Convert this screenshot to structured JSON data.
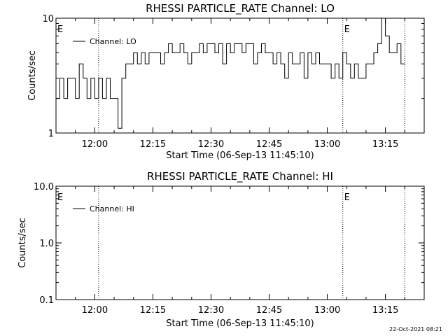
{
  "footer": {
    "timestamp": "22-Oct-2021 08:21"
  },
  "chart_data": [
    {
      "type": "line",
      "title": "RHESSI PARTICLE_RATE Channel: LO",
      "xlabel": "Start Time (06-Sep-13 11:45:10)",
      "ylabel": "Counts/sec",
      "yscale": "log",
      "ylim": [
        1,
        10
      ],
      "xlim": [
        "11:50",
        "13:25"
      ],
      "x_ticks": [
        "12:00",
        "12:15",
        "12:30",
        "12:45",
        "13:00",
        "13:15"
      ],
      "y_ticks": [
        "1",
        "10"
      ],
      "legend": {
        "label": "Channel: LO",
        "position": "top-left"
      },
      "markers": [
        {
          "label": "E",
          "time": "11:50"
        },
        {
          "label": "",
          "time": "12:01"
        },
        {
          "label": "E",
          "time": "13:04"
        },
        {
          "label": "",
          "time": "13:20"
        }
      ],
      "series": [
        {
          "name": "Channel: LO",
          "x": [
            "11:50",
            "11:51",
            "11:52",
            "11:53",
            "11:54",
            "11:55",
            "11:56",
            "11:57",
            "11:58",
            "11:59",
            "12:00",
            "12:01",
            "12:02",
            "12:03",
            "12:04",
            "12:05",
            "12:06",
            "12:07",
            "12:08",
            "12:09",
            "12:10",
            "12:11",
            "12:12",
            "12:13",
            "12:14",
            "12:15",
            "12:16",
            "12:17",
            "12:18",
            "12:19",
            "12:20",
            "12:21",
            "12:22",
            "12:23",
            "12:24",
            "12:25",
            "12:26",
            "12:27",
            "12:28",
            "12:29",
            "12:30",
            "12:31",
            "12:32",
            "12:33",
            "12:34",
            "12:35",
            "12:36",
            "12:37",
            "12:38",
            "12:39",
            "12:40",
            "12:41",
            "12:42",
            "12:43",
            "12:44",
            "12:45",
            "12:46",
            "12:47",
            "12:48",
            "12:49",
            "12:50",
            "12:51",
            "12:52",
            "12:53",
            "12:54",
            "12:55",
            "12:56",
            "12:57",
            "12:58",
            "12:59",
            "13:00",
            "13:01",
            "13:02",
            "13:03",
            "13:04",
            "13:05",
            "13:06",
            "13:07",
            "13:08",
            "13:09",
            "13:10",
            "13:11",
            "13:12",
            "13:13",
            "13:14",
            "13:15",
            "13:16",
            "13:17",
            "13:18",
            "13:19"
          ],
          "y": [
            2,
            3,
            2,
            3,
            3,
            2,
            4,
            3,
            2,
            3,
            2,
            3,
            2,
            3,
            2,
            2,
            1.1,
            3,
            4,
            4,
            5,
            4,
            5,
            4,
            5,
            5,
            5,
            4,
            5,
            6,
            5,
            5,
            6,
            5,
            4,
            5,
            5,
            6,
            5,
            6,
            6,
            5,
            6,
            4,
            6,
            5,
            6,
            6,
            5,
            6,
            6,
            4,
            5,
            6,
            5,
            5,
            4,
            5,
            4,
            3,
            5,
            4,
            4,
            5,
            3,
            5,
            4,
            5,
            4,
            4,
            4,
            3,
            4,
            3,
            5,
            4,
            3,
            4,
            3,
            3,
            4,
            4,
            5,
            6,
            10,
            7,
            5,
            5,
            6,
            4
          ]
        }
      ]
    },
    {
      "type": "line",
      "title": "RHESSI PARTICLE_RATE Channel: HI",
      "xlabel": "Start Time (06-Sep-13 11:45:10)",
      "ylabel": "Counts/sec",
      "yscale": "log",
      "ylim": [
        0.1,
        10
      ],
      "xlim": [
        "11:50",
        "13:25"
      ],
      "x_ticks": [
        "12:00",
        "12:15",
        "12:30",
        "12:45",
        "13:00",
        "13:15"
      ],
      "y_ticks": [
        "0.1",
        "1.0",
        "10.0"
      ],
      "legend": {
        "label": "Channel: HI",
        "position": "top-left"
      },
      "markers": [
        {
          "label": "E",
          "time": "11:50"
        },
        {
          "label": "",
          "time": "12:01"
        },
        {
          "label": "E",
          "time": "13:04"
        },
        {
          "label": "",
          "time": "13:20"
        }
      ],
      "series": [
        {
          "name": "Channel: HI",
          "x": [],
          "y": []
        }
      ]
    }
  ]
}
